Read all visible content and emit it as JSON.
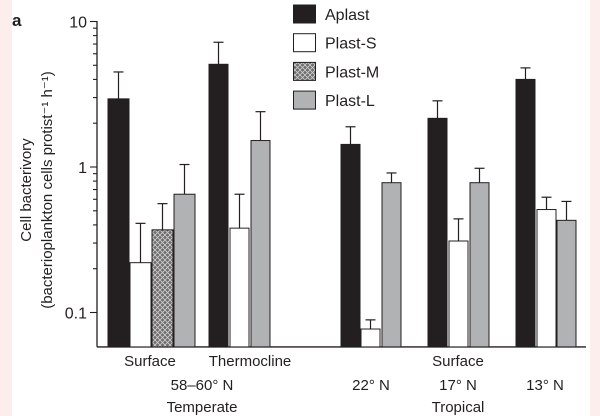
{
  "panel_label": "a",
  "colors": {
    "Aplast": "#231f20",
    "Plast-S": "#ffffff",
    "Plast-M": "#6d6d6d",
    "Plast-L": "#b1b2b4",
    "axis": "#231f20",
    "edge_strip": "#fdeeee"
  },
  "chart_data": {
    "type": "bar",
    "yscale": "log",
    "ylabel": "Cell bacterivory",
    "ylabel_units": "(bacterioplankton cells protist⁻¹ h⁻¹)",
    "yticks": [
      {
        "value": 10,
        "label": "10"
      },
      {
        "value": 1,
        "label": "1"
      },
      {
        "value": 0.1,
        "label": "0.1"
      }
    ],
    "ylim": [
      0.058,
      10
    ],
    "legend": [
      "Aplast",
      "Plast-S",
      "Plast-M",
      "Plast-L"
    ],
    "legend_position": "top-right",
    "categories": [
      {
        "label": "Surface",
        "region": "58–60° N",
        "zone": "Temperate",
        "values": {
          "Aplast": 2.94,
          "Plast-S": 0.22,
          "Plast-M": 0.37,
          "Plast-L": 0.65
        },
        "errors_upper": {
          "Aplast": 4.5,
          "Plast-S": 0.41,
          "Plast-M": 0.56,
          "Plast-L": 1.04
        }
      },
      {
        "label": "Thermocline",
        "region": "58–60° N",
        "zone": "Temperate",
        "values": {
          "Aplast": 5.08,
          "Plast-S": 0.38,
          "Plast-L": 1.52
        },
        "errors_upper": {
          "Aplast": 7.2,
          "Plast-S": 0.65,
          "Plast-L": 2.4
        }
      },
      {
        "label": "22° N",
        "region": "Surface",
        "zone": "Tropical",
        "values": {
          "Aplast": 1.43,
          "Plast-S": 0.077,
          "Plast-L": 0.78
        },
        "errors_upper": {
          "Aplast": 1.89,
          "Plast-S": 0.089,
          "Plast-L": 0.91
        }
      },
      {
        "label": "17° N",
        "region": "Surface",
        "zone": "Tropical",
        "values": {
          "Aplast": 2.16,
          "Plast-S": 0.31,
          "Plast-L": 0.78
        },
        "errors_upper": {
          "Aplast": 2.85,
          "Plast-S": 0.44,
          "Plast-L": 0.98
        }
      },
      {
        "label": "13° N",
        "region": "Surface",
        "zone": "Tropical",
        "values": {
          "Aplast": 4.0,
          "Plast-S": 0.51,
          "Plast-L": 0.43
        },
        "errors_upper": {
          "Aplast": 4.8,
          "Plast-S": 0.62,
          "Plast-L": 0.58
        }
      }
    ],
    "group_labels": {
      "temperate_sub": [
        "Surface",
        "Thermocline"
      ],
      "temperate_lat": "58–60° N",
      "temperate_zone": "Temperate",
      "tropical_depth": "Surface",
      "tropical_lats": [
        "22° N",
        "17° N",
        "13° N"
      ],
      "tropical_zone": "Tropical"
    }
  }
}
